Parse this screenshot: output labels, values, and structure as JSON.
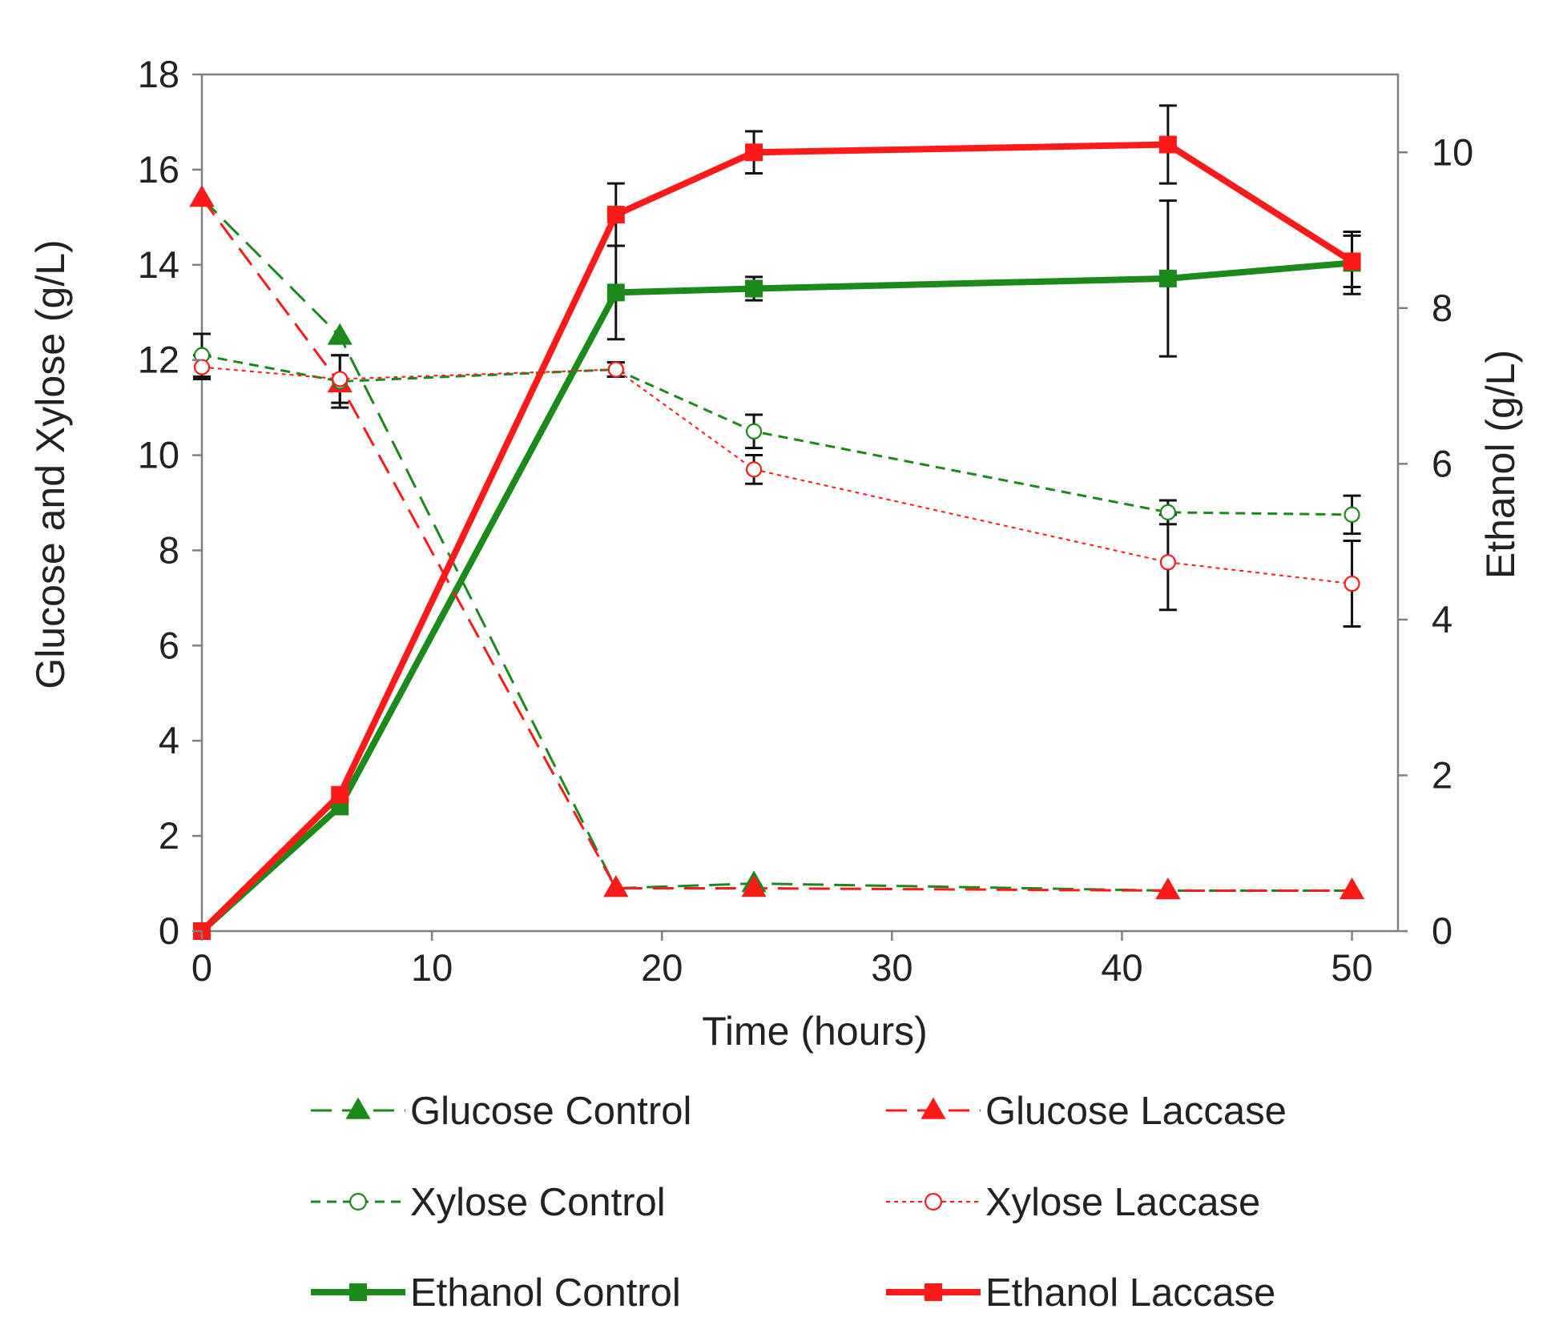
{
  "chart_data": {
    "type": "line",
    "xlabel": "Time (hours)",
    "ylabel": "Glucose and Xylose (g/L)",
    "y2label": "Ethanol (g/L)",
    "xlim": [
      0,
      52
    ],
    "ylim": [
      0,
      18
    ],
    "y2lim": [
      0,
      11
    ],
    "xticks": [
      "0",
      "10",
      "20",
      "30",
      "40",
      "50"
    ],
    "yticks": [
      "0",
      "2",
      "4",
      "6",
      "8",
      "10",
      "12",
      "14",
      "16",
      "18"
    ],
    "y2ticks": [
      "0",
      "2",
      "4",
      "6",
      "8",
      "10"
    ],
    "x": [
      0,
      6,
      18,
      24,
      42,
      50
    ],
    "series": [
      {
        "name": "Glucose Control",
        "axis": "left",
        "color": "#1a8a1a",
        "marker": "triangle",
        "filled": true,
        "line": "longdash",
        "values": [
          15.4,
          12.5,
          0.9,
          1.0,
          0.85,
          0.85
        ],
        "errors": [
          0,
          0,
          0,
          0,
          0,
          0
        ]
      },
      {
        "name": "Glucose Laccase",
        "axis": "left",
        "color": "#ff1a1a",
        "marker": "triangle",
        "filled": true,
        "line": "longdash",
        "values": [
          15.4,
          11.5,
          0.9,
          0.9,
          0.85,
          0.85
        ],
        "errors": [
          0,
          0,
          0,
          0,
          0,
          0
        ]
      },
      {
        "name": "Xylose Control",
        "axis": "left",
        "color": "#1a8a1a",
        "marker": "circle",
        "filled": false,
        "line": "dash",
        "values": [
          12.1,
          11.55,
          11.8,
          10.5,
          8.8,
          8.75
        ],
        "errors": [
          0.45,
          0.55,
          0.15,
          0.35,
          0.25,
          0.4
        ]
      },
      {
        "name": "Xylose Laccase",
        "axis": "left",
        "color": "#ff1a1a",
        "marker": "circle",
        "filled": false,
        "line": "dot",
        "values": [
          11.85,
          11.6,
          11.8,
          9.7,
          7.75,
          7.3
        ],
        "errors": [
          0.25,
          0.5,
          0.15,
          0.3,
          1.0,
          0.9
        ]
      },
      {
        "name": "Ethanol Control",
        "axis": "right",
        "color": "#1a8a1a",
        "marker": "square",
        "filled": true,
        "line": "solid",
        "values": [
          0,
          1.6,
          8.2,
          8.25,
          8.38,
          8.58
        ],
        "errors": [
          0,
          0,
          0.6,
          0.15,
          1.0,
          0.4
        ]
      },
      {
        "name": "Ethanol Laccase",
        "axis": "right",
        "color": "#ff1a1a",
        "marker": "square",
        "filled": true,
        "line": "solid",
        "values": [
          0,
          1.75,
          9.2,
          10.0,
          10.1,
          8.6
        ],
        "errors": [
          0,
          0,
          0.4,
          0.27,
          0.5,
          0.33
        ]
      }
    ],
    "legend_position": "bottom, two columns"
  }
}
